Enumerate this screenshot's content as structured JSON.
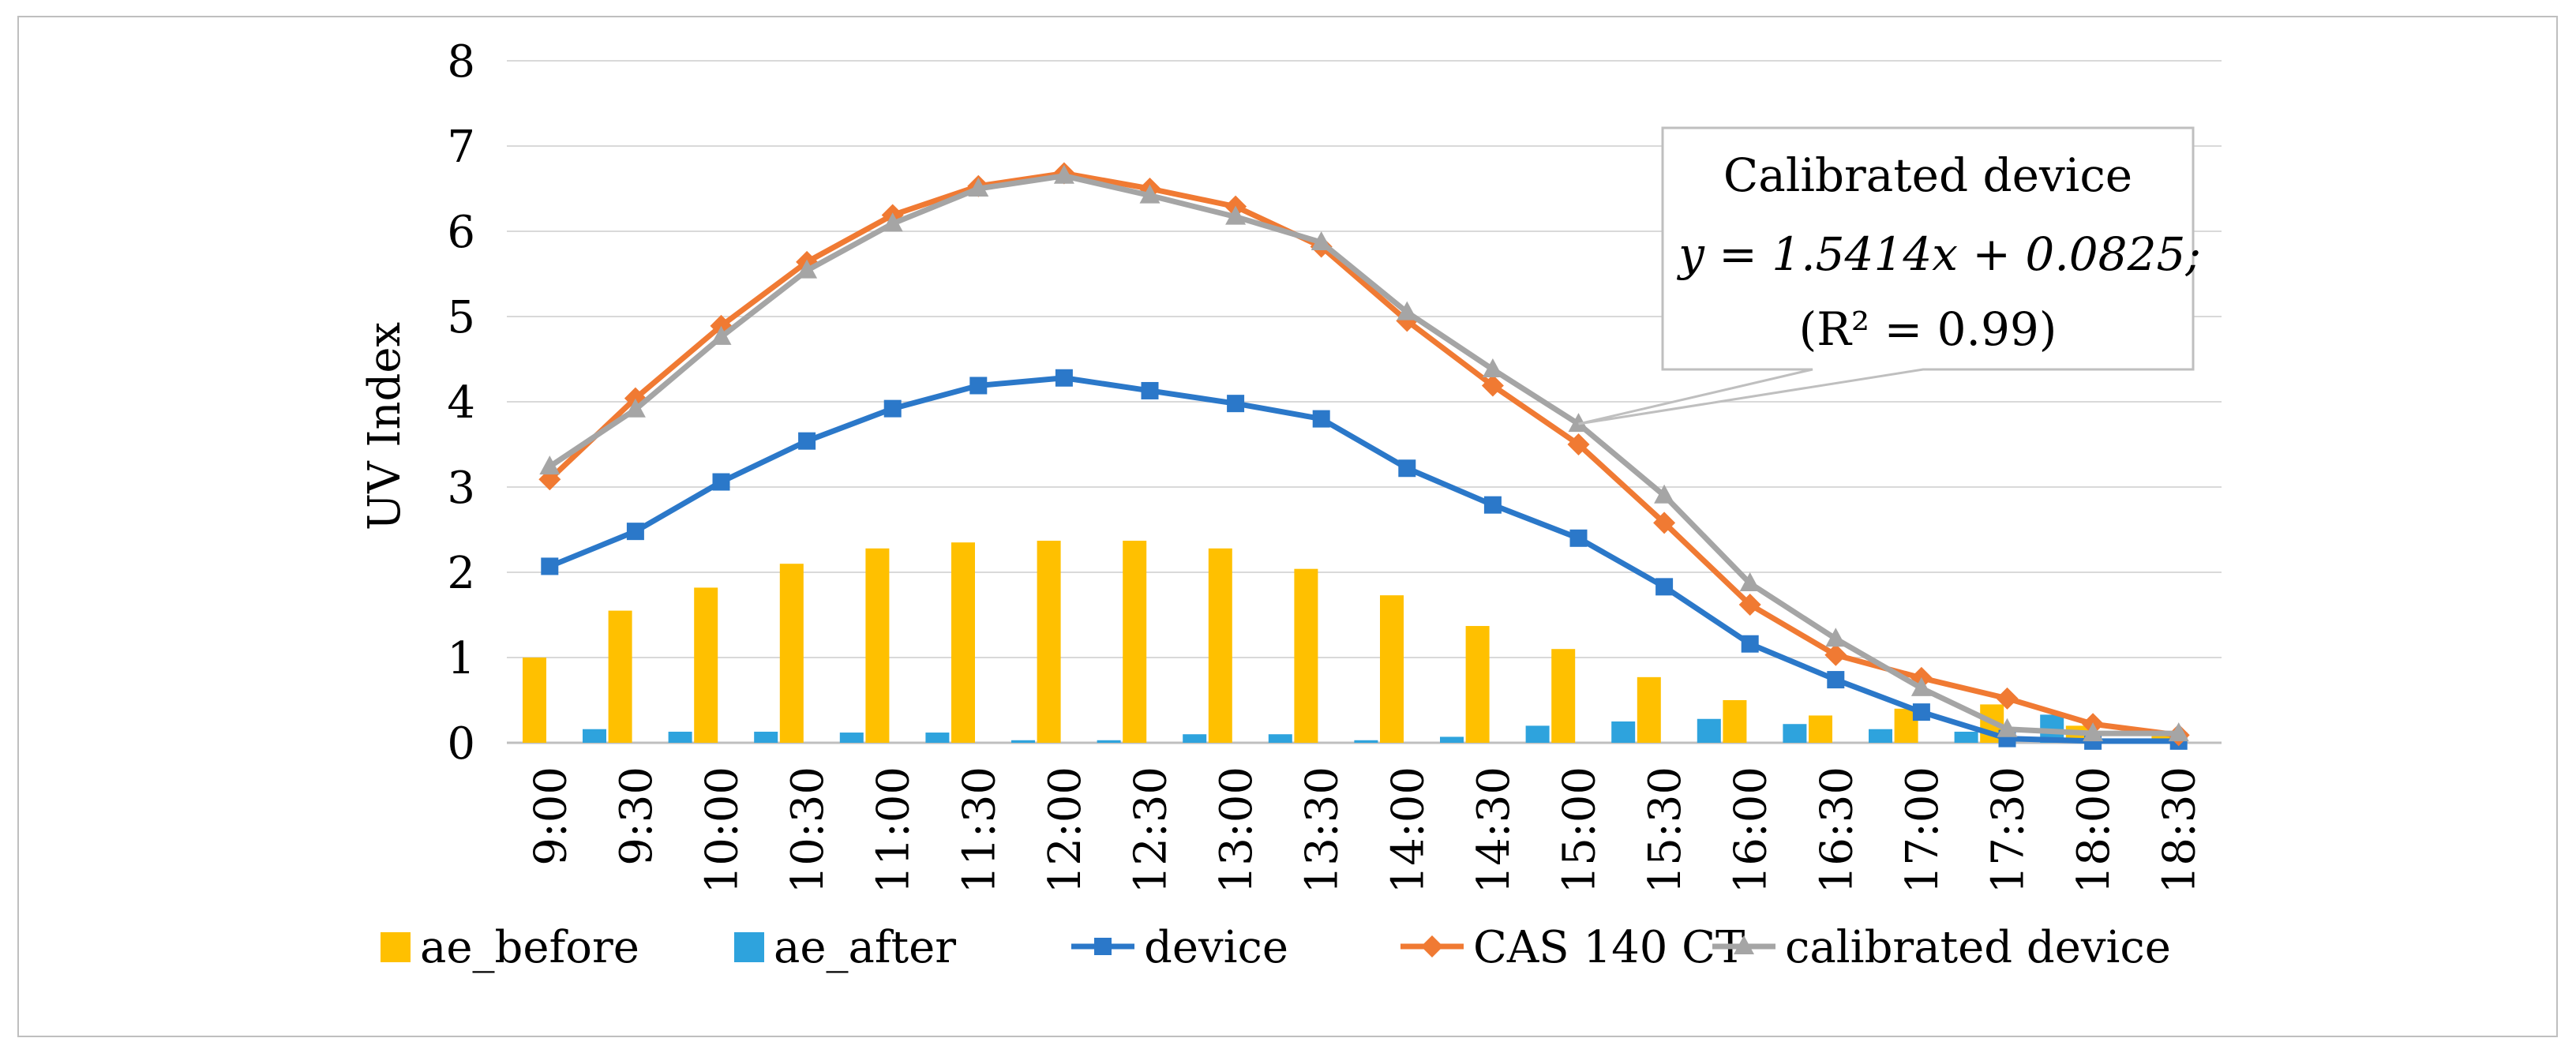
{
  "chart_data": {
    "type": "bar+line",
    "title": "",
    "xlabel": "",
    "ylabel": "UV Index",
    "ylim": [
      0,
      8
    ],
    "yticks": [
      0,
      1,
      2,
      3,
      4,
      5,
      6,
      7,
      8
    ],
    "grid": true,
    "legend_position": "bottom",
    "categories": [
      "9:00",
      "9:30",
      "10:00",
      "10:30",
      "11:00",
      "11:30",
      "12:00",
      "12:30",
      "13:00",
      "13:30",
      "14:00",
      "14:30",
      "15:00",
      "15:30",
      "16:00",
      "16:30",
      "17:00",
      "17:30",
      "18:00",
      "18:30"
    ],
    "series": [
      {
        "name": "ae_before",
        "kind": "bar",
        "color": "#ffc000",
        "values": [
          1.0,
          1.55,
          1.82,
          2.1,
          2.28,
          2.35,
          2.37,
          2.37,
          2.28,
          2.04,
          1.73,
          1.37,
          1.1,
          0.77,
          0.5,
          0.32,
          0.4,
          0.45,
          0.2,
          0.1
        ]
      },
      {
        "name": "ae_after",
        "kind": "bar",
        "color": "#2ea3dd",
        "values": [
          0.16,
          0.13,
          0.13,
          0.12,
          0.12,
          0.03,
          0.03,
          0.1,
          0.1,
          0.03,
          0.07,
          0.2,
          0.25,
          0.28,
          0.22,
          0.16,
          0.13,
          0.33,
          0.0,
          0.0
        ]
      },
      {
        "name": "device",
        "kind": "line",
        "marker": "square",
        "color": "#2b78c9",
        "values": [
          2.07,
          2.48,
          3.06,
          3.54,
          3.92,
          4.19,
          4.28,
          4.13,
          3.98,
          3.8,
          3.22,
          2.79,
          2.4,
          1.83,
          1.16,
          0.74,
          0.36,
          0.05,
          0.02,
          0.02
        ]
      },
      {
        "name": "CAS 140 CT",
        "kind": "line",
        "marker": "diamond",
        "color": "#f07a33",
        "values": [
          3.09,
          4.04,
          4.89,
          5.64,
          6.19,
          6.53,
          6.68,
          6.5,
          6.29,
          5.82,
          4.95,
          4.19,
          3.5,
          2.58,
          1.62,
          1.03,
          0.76,
          0.52,
          0.22,
          0.09
        ]
      },
      {
        "name": "calibrated device",
        "kind": "line",
        "marker": "triangle",
        "color": "#a5a5a5",
        "values": [
          3.24,
          3.91,
          4.76,
          5.54,
          6.09,
          6.5,
          6.65,
          6.42,
          6.17,
          5.87,
          5.05,
          4.38,
          3.74,
          2.9,
          1.87,
          1.22,
          0.64,
          0.16,
          0.11,
          0.11
        ]
      }
    ],
    "annotation": {
      "line1": "Calibrated device",
      "line2": "y = 1.5414x + 0.0825;",
      "line3": "(R² = 0.99)",
      "target_series": "calibrated device",
      "target_category": "15:00"
    }
  }
}
